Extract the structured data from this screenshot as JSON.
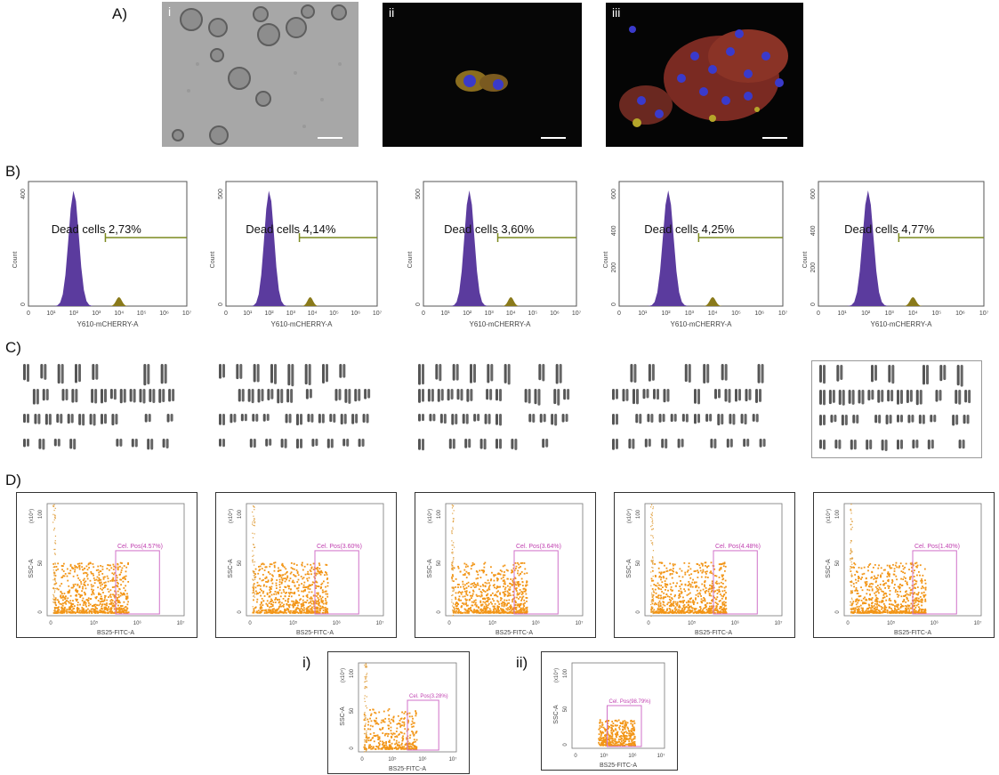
{
  "panels": {
    "A": {
      "label": "A)",
      "images": [
        {
          "roman": "i"
        },
        {
          "roman": "ii"
        },
        {
          "roman": "iii"
        }
      ]
    },
    "B": {
      "label": "B)"
    },
    "C": {
      "label": "C)"
    },
    "D": {
      "label": "D)",
      "extra_labels": [
        "i)",
        "ii)"
      ]
    }
  },
  "colors": {
    "histogram_fill": "#5b3b9e",
    "dead_fill": "#8a7a1a",
    "gate_line": "#7c8a1e",
    "dot_orange": "#f29516",
    "gate_pink": "#d070c8"
  },
  "chart_data": [
    {
      "type": "histogram",
      "panel": "B",
      "label": "Dead cells 2,73%",
      "xlabel": "Y610-mCHERRY-A",
      "ylabel": "Count",
      "xscale": "log",
      "xticks": [
        "0",
        "10¹",
        "10²",
        "10³",
        "10⁴",
        "10⁵",
        "10⁶",
        "10⁷"
      ],
      "yticks": [
        "0",
        "400"
      ],
      "peak_log": 2.0,
      "dead_log": 4.0
    },
    {
      "type": "histogram",
      "panel": "B",
      "label": "Dead cells 4,14%",
      "xlabel": "Y610-mCHERRY-A",
      "ylabel": "Count",
      "xscale": "log",
      "xticks": [
        "0",
        "10¹",
        "10²",
        "10³",
        "10⁴",
        "10⁵",
        "10⁶",
        "10⁷"
      ],
      "yticks": [
        "0",
        "500"
      ],
      "peak_log": 2.0,
      "dead_log": 3.9
    },
    {
      "type": "histogram",
      "panel": "B",
      "label": "Dead cells 3,60%",
      "xlabel": "Y610-mCHERRY-A",
      "ylabel": "Count",
      "xscale": "log",
      "xticks": [
        "0",
        "10¹",
        "10²",
        "10³",
        "10⁴",
        "10⁵",
        "10⁶",
        "10⁷"
      ],
      "yticks": [
        "0",
        "500"
      ],
      "peak_log": 2.1,
      "dead_log": 4.0
    },
    {
      "type": "histogram",
      "panel": "B",
      "label": "Dead cells 4,25%",
      "xlabel": "Y610-mCHERRY-A",
      "ylabel": "Count",
      "xscale": "log",
      "xticks": [
        "0",
        "10¹",
        "10²",
        "10³",
        "10⁴",
        "10⁵",
        "10⁶",
        "10⁷"
      ],
      "yticks": [
        "0",
        "200",
        "400",
        "600"
      ],
      "peak_log": 2.1,
      "dead_log": 4.0
    },
    {
      "type": "histogram",
      "panel": "B",
      "label": "Dead cells 4,77%",
      "xlabel": "Y610-mCHERRY-A",
      "ylabel": "Count",
      "xscale": "log",
      "xticks": [
        "0",
        "10¹",
        "10²",
        "10³",
        "10⁴",
        "10⁵",
        "10⁶",
        "10⁷"
      ],
      "yticks": [
        "0",
        "200",
        "400",
        "600"
      ],
      "peak_log": 2.1,
      "dead_log": 4.0
    },
    {
      "type": "scatter",
      "panel": "D",
      "gate": "Cel. Pos(4.57%)",
      "xlabel": "BS25-FITC-A",
      "ylabel": "SSC-A",
      "yunit": "(x10⁴)",
      "xticks": [
        "0",
        "10⁵",
        "10⁶",
        "10⁷"
      ],
      "yticks": [
        "0",
        "50",
        "100"
      ]
    },
    {
      "type": "scatter",
      "panel": "D",
      "gate": "Cel. Pos(3.60%)",
      "xlabel": "BS25-FITC-A",
      "ylabel": "SSC-A",
      "yunit": "(x10⁴)",
      "xticks": [
        "0",
        "10⁵",
        "10⁶",
        "10⁷"
      ],
      "yticks": [
        "0",
        "50",
        "100"
      ]
    },
    {
      "type": "scatter",
      "panel": "D",
      "gate": "Cel. Pos(3.64%)",
      "xlabel": "BS25-FITC-A",
      "ylabel": "SSC-A",
      "yunit": "(x10⁴)",
      "xticks": [
        "0",
        "10⁵",
        "10⁶",
        "10⁷"
      ],
      "yticks": [
        "0",
        "50",
        "100"
      ]
    },
    {
      "type": "scatter",
      "panel": "D",
      "gate": "Cel. Pos(4.48%)",
      "xlabel": "BS25-FITC-A",
      "ylabel": "SSC-A",
      "yunit": "(x10⁴)",
      "xticks": [
        "0",
        "10⁵",
        "10⁶",
        "10⁷"
      ],
      "yticks": [
        "0",
        "50",
        "100"
      ]
    },
    {
      "type": "scatter",
      "panel": "D",
      "gate": "Cel. Pos(1.40%)",
      "xlabel": "BS25-FITC-A",
      "ylabel": "SSC-A",
      "yunit": "(x10⁴)",
      "xticks": [
        "0",
        "10⁵",
        "10⁶",
        "10⁷"
      ],
      "yticks": [
        "0",
        "50",
        "100"
      ]
    },
    {
      "type": "scatter",
      "panel": "D-i",
      "gate": "Cel. Pos(3.28%)",
      "xlabel": "BS25-FITC-A",
      "ylabel": "SSC-A",
      "yunit": "(x10⁴)",
      "xticks": [
        "0",
        "10⁵",
        "10⁶",
        "10⁷"
      ],
      "yticks": [
        "0",
        "50",
        "100"
      ]
    },
    {
      "type": "scatter",
      "panel": "D-ii",
      "gate": "Cel. Pos(98.79%)",
      "xlabel": "BS25-FITC-A",
      "ylabel": "SSC-A",
      "yunit": "(x10⁴)",
      "xticks": [
        "0",
        "10⁵",
        "10⁶",
        "10⁷"
      ],
      "yticks": [
        "0",
        "50",
        "100"
      ]
    }
  ]
}
